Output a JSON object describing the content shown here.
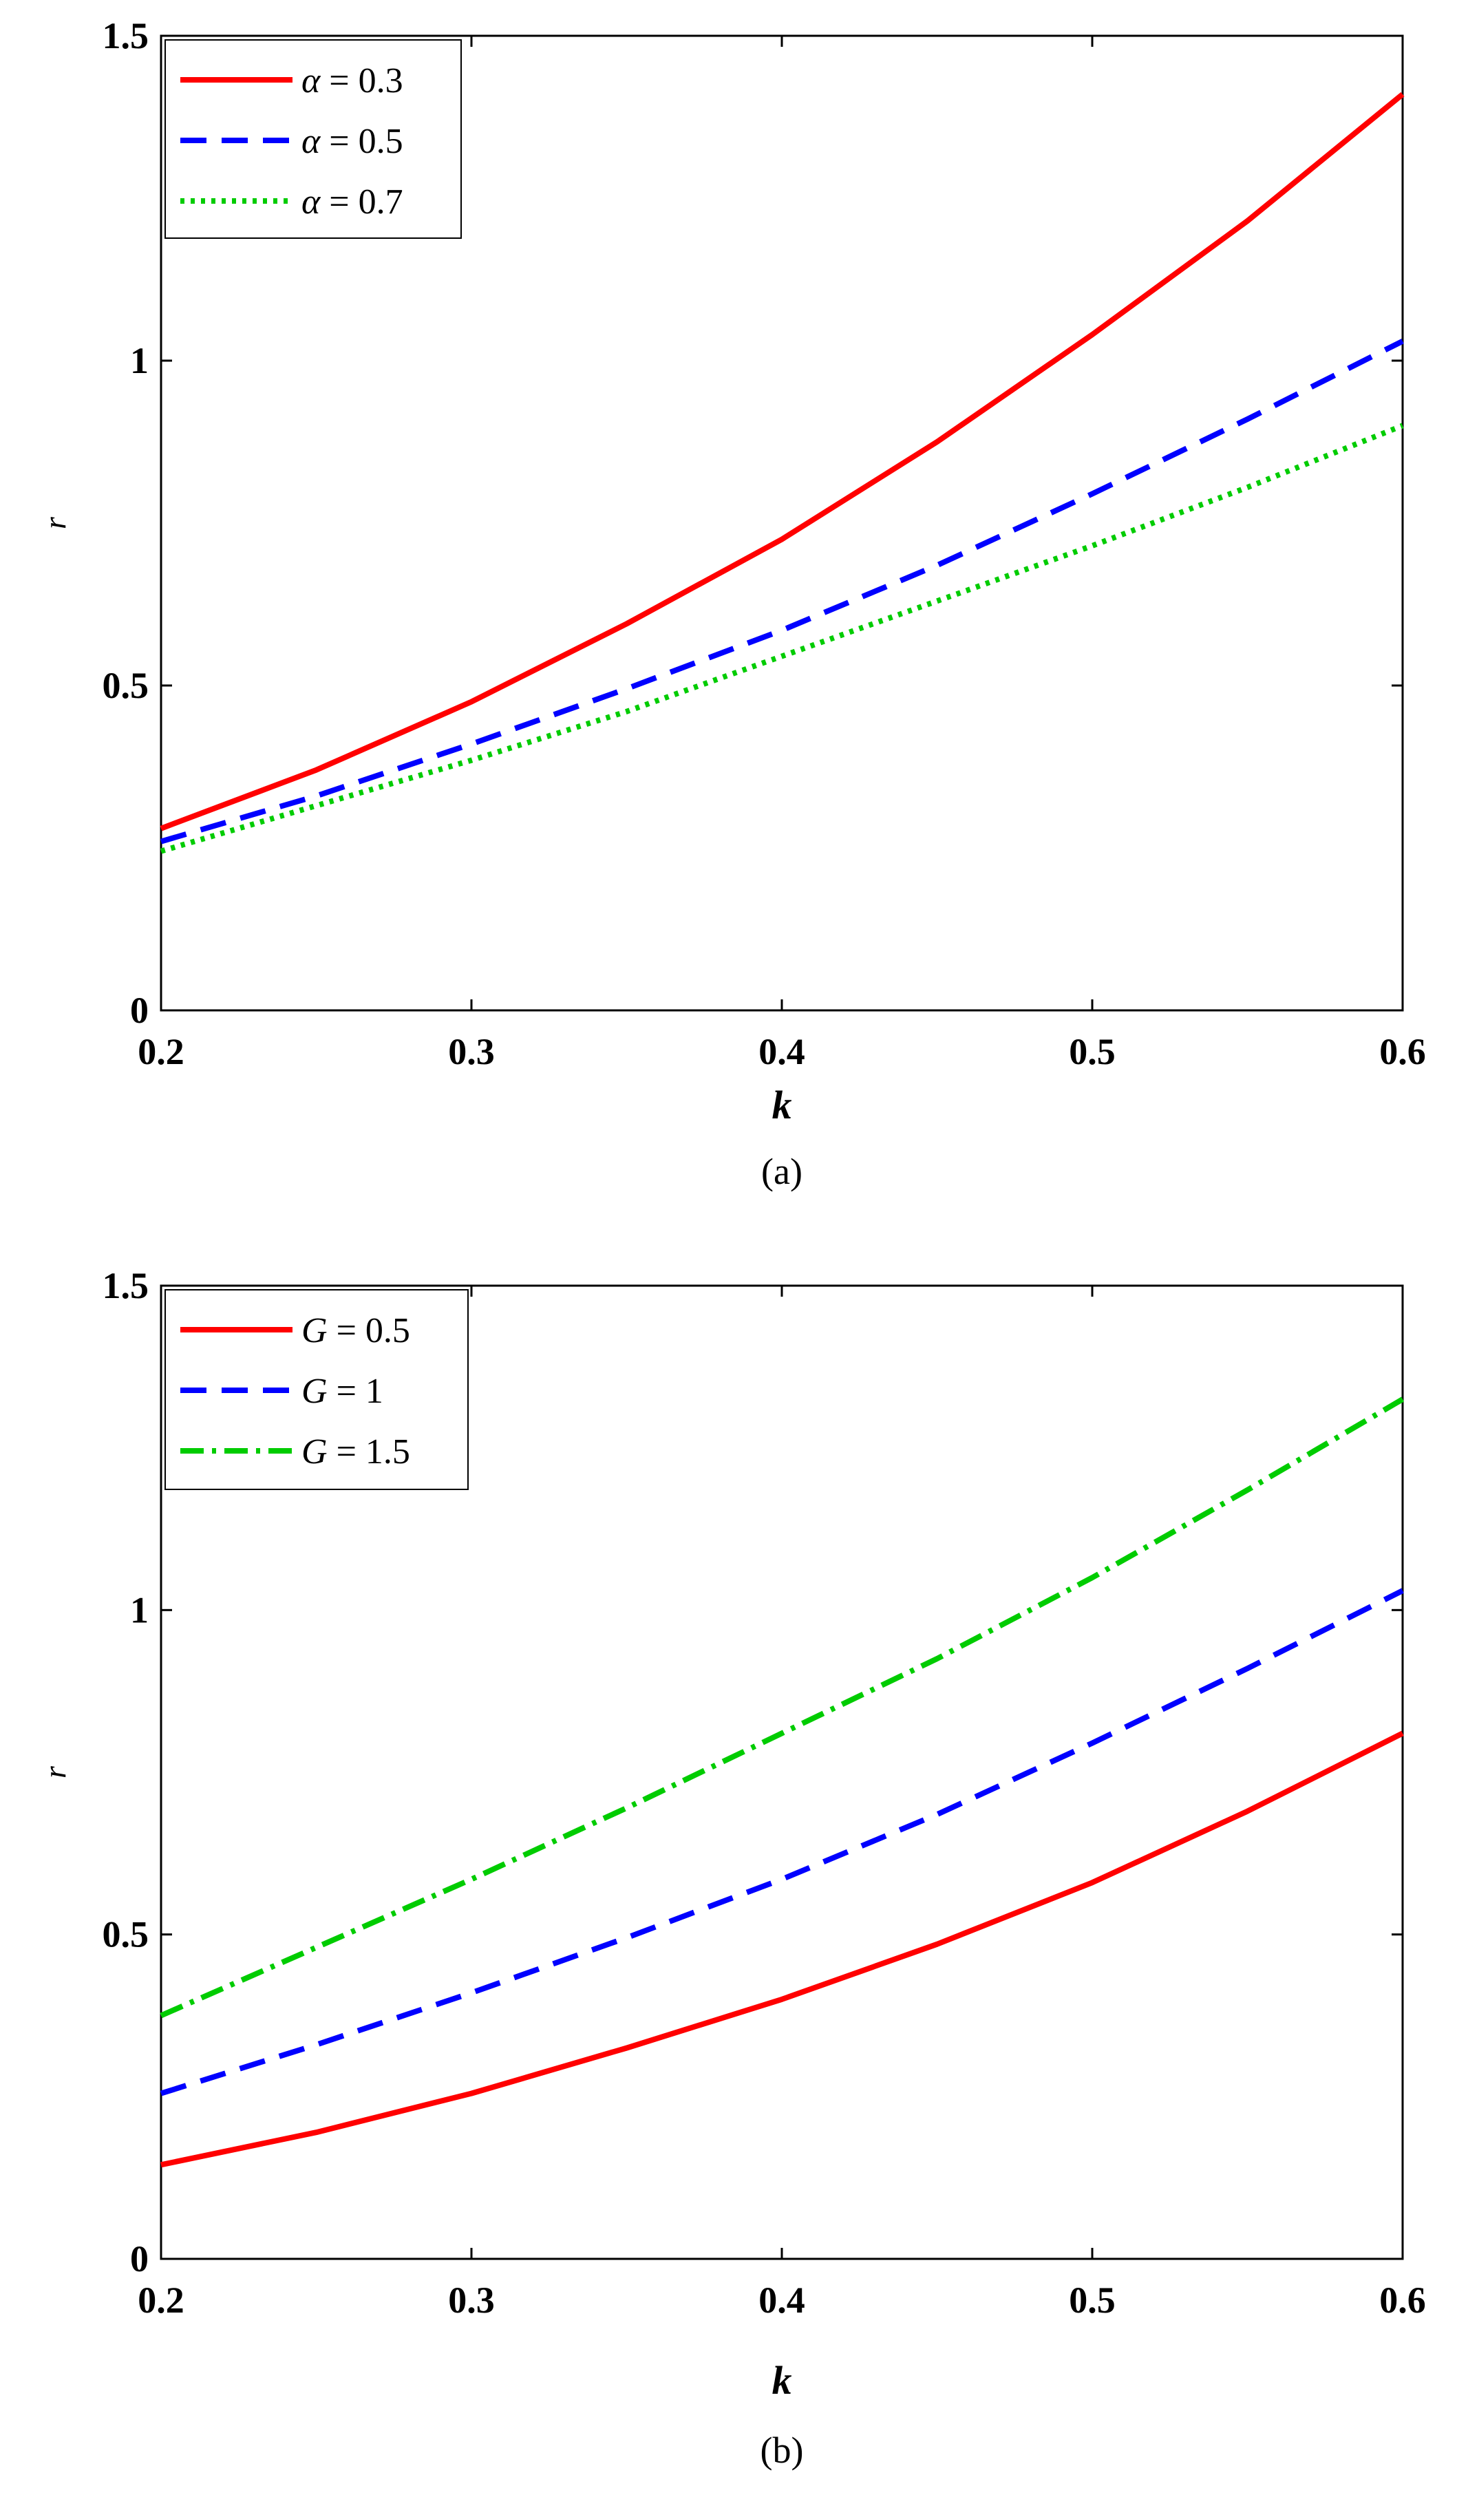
{
  "chart_data": [
    {
      "type": "line",
      "caption": "(a)",
      "xlabel": "k",
      "ylabel": "r",
      "xlim": [
        0.2,
        0.6
      ],
      "ylim": [
        0,
        1.5
      ],
      "xticks": [
        "0.2",
        "0.3",
        "0.4",
        "0.5",
        "0.6"
      ],
      "yticks": [
        "0",
        "0.5",
        "1",
        "1.5"
      ],
      "grid": false,
      "legend_position": "top-left",
      "x": [
        0.2,
        0.25,
        0.3,
        0.35,
        0.4,
        0.45,
        0.5,
        0.55,
        0.6
      ],
      "series": [
        {
          "name": "α = 0.3",
          "symbol": "α",
          "value_text": "= 0.3",
          "color": "#ff0000",
          "style": "solid",
          "values": [
            0.28,
            0.37,
            0.475,
            0.595,
            0.725,
            0.875,
            1.04,
            1.215,
            1.41
          ]
        },
        {
          "name": "α = 0.5",
          "symbol": "α",
          "value_text": "= 0.5",
          "color": "#0000ff",
          "style": "dashed",
          "values": [
            0.26,
            0.33,
            0.41,
            0.495,
            0.585,
            0.685,
            0.795,
            0.91,
            1.03
          ]
        },
        {
          "name": "α = 0.7",
          "symbol": "α",
          "value_text": "= 0.7",
          "color": "#00cc00",
          "style": "dotted",
          "values": [
            0.245,
            0.315,
            0.385,
            0.46,
            0.545,
            0.63,
            0.715,
            0.805,
            0.9
          ]
        }
      ]
    },
    {
      "type": "line",
      "caption": "(b)",
      "xlabel": "k",
      "ylabel": "r",
      "xlim": [
        0.2,
        0.6
      ],
      "ylim": [
        0,
        1.5
      ],
      "xticks": [
        "0.2",
        "0.3",
        "0.4",
        "0.5",
        "0.6"
      ],
      "yticks": [
        "0",
        "0.5",
        "1",
        "1.5"
      ],
      "grid": false,
      "legend_position": "top-left",
      "x": [
        0.2,
        0.25,
        0.3,
        0.35,
        0.4,
        0.45,
        0.5,
        0.55,
        0.6
      ],
      "series": [
        {
          "name": "G = 0.5",
          "symbol": "G",
          "value_text": "= 0.5",
          "color": "#ff0000",
          "style": "solid",
          "values": [
            0.145,
            0.195,
            0.255,
            0.325,
            0.4,
            0.485,
            0.58,
            0.69,
            0.81
          ]
        },
        {
          "name": "G = 1",
          "symbol": "G",
          "value_text": "= 1",
          "color": "#0000ff",
          "style": "dashed",
          "values": [
            0.255,
            0.33,
            0.41,
            0.495,
            0.585,
            0.685,
            0.795,
            0.91,
            1.03
          ]
        },
        {
          "name": "G = 1.5",
          "symbol": "G",
          "value_text": "= 1.5",
          "color": "#00cc00",
          "style": "dashdot",
          "values": [
            0.375,
            0.48,
            0.585,
            0.695,
            0.81,
            0.925,
            1.05,
            1.185,
            1.325
          ]
        }
      ]
    }
  ]
}
